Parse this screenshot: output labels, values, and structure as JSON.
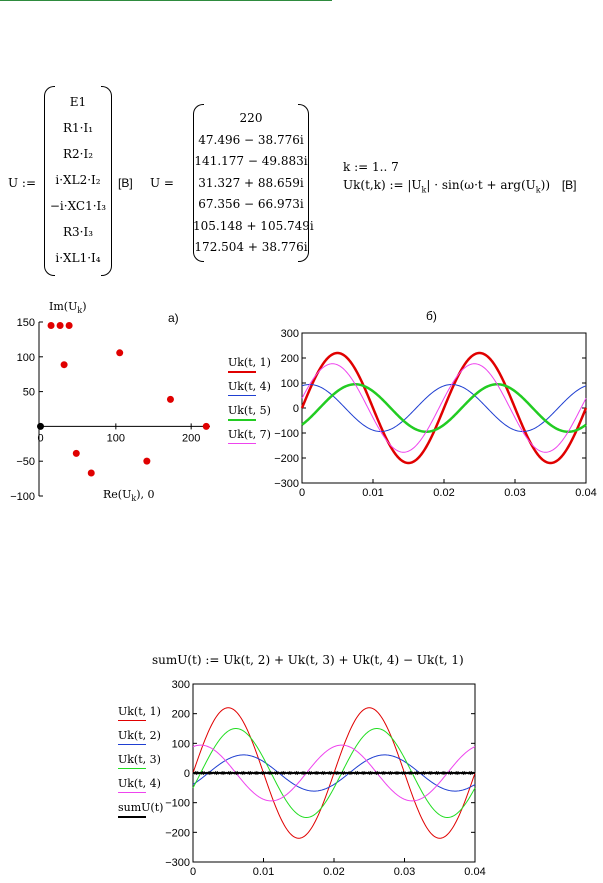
{
  "matrixU1": {
    "lhs": "U :=",
    "rows": [
      "E1",
      "R1·I₁",
      "R2·I₂",
      "i·XL2·I₂",
      "−i·XC1·I₃",
      "R3·I₃",
      "i·XL1·I₄"
    ],
    "unit": "[B]"
  },
  "matrixU2": {
    "lhs": "U =",
    "rows": [
      "220",
      "47.496 − 38.776i",
      "141.177 − 49.883i",
      "31.327 + 88.659i",
      "67.356 − 66.973i",
      "105.148 + 105.749i",
      "172.504 + 38.776i"
    ]
  },
  "defs": {
    "k_range": "k := 1.. 7",
    "uk_def": "Uk(t,k) := |U",
    "uk_sub": "k",
    "uk_tail": "| · sin(ω·t + arg(U",
    "uk_tail2": "))",
    "uk_unit": "[B]"
  },
  "chart_a": {
    "panel_label": "а)",
    "ylabel": "Im(U",
    "ylabel_sub": "k",
    "ylabel_end": ")",
    "xlabel": "Re(U",
    "xlabel_sub": "k",
    "xlabel_end": "), 0",
    "chart_data": {
      "type": "scatter",
      "ylim": [
        -100,
        150
      ],
      "xlim": [
        -2,
        225
      ],
      "yticks": [
        "150",
        "100",
        "50",
        "0",
        "−50",
        "−100"
      ],
      "xticks": [
        "0",
        "100",
        "200"
      ],
      "points": [
        {
          "x": 220,
          "y": 0
        },
        {
          "x": 47.496,
          "y": -38.776
        },
        {
          "x": 141.177,
          "y": -49.883
        },
        {
          "x": 31.327,
          "y": 88.659
        },
        {
          "x": 67.356,
          "y": -66.973
        },
        {
          "x": 105.148,
          "y": 105.749
        },
        {
          "x": 172.504,
          "y": 38.776
        },
        {
          "x": 14,
          "y": 145
        },
        {
          "x": 26,
          "y": 145
        },
        {
          "x": 38,
          "y": 145
        }
      ],
      "origin_point": {
        "x": 0,
        "y": 0
      }
    }
  },
  "chart_b": {
    "panel_label": "б)",
    "legend": [
      "Uk(t, 1)",
      "Uk(t, 4)",
      "Uk(t, 5)",
      "Uk(t, 7)"
    ],
    "chart_data": {
      "type": "line",
      "xlim": [
        0,
        0.04
      ],
      "ylim": [
        -300,
        300
      ],
      "xticks": [
        "0",
        "0.01",
        "0.02",
        "0.03",
        "0.04"
      ],
      "yticks": [
        "300",
        "200",
        "100",
        "0",
        "−100",
        "−200",
        "−300"
      ],
      "series": [
        {
          "name": "Uk(t, 1)",
          "amplitude": 220,
          "phase_deg": 0,
          "color": "#e00000",
          "width": 2.5
        },
        {
          "name": "Uk(t, 4)",
          "amplitude": 94,
          "phase_deg": 70.5,
          "color": "#1f3fd1",
          "width": 1
        },
        {
          "name": "Uk(t, 5)",
          "amplitude": 95,
          "phase_deg": -44.8,
          "color": "#22cc22",
          "width": 2.5
        },
        {
          "name": "Uk(t, 7)",
          "amplitude": 177,
          "phase_deg": 12.7,
          "color": "#ee44ee",
          "width": 1
        }
      ],
      "frequency_hz": 50
    }
  },
  "sum_def": "sumU(t) := Uk(t, 2) + Uk(t, 3) + Uk(t, 4) − Uk(t, 1)",
  "chart_c": {
    "legend": [
      "Uk(t, 1)",
      "Uk(t, 2)",
      "Uk(t, 3)",
      "Uk(t, 4)",
      "sumU(t)"
    ],
    "chart_data": {
      "type": "line",
      "xlim": [
        0,
        0.04
      ],
      "ylim": [
        -300,
        300
      ],
      "xticks": [
        "0",
        "0.01",
        "0.02",
        "0.03",
        "0.04"
      ],
      "yticks": [
        "300",
        "200",
        "100",
        "0",
        "−100",
        "−200",
        "−300"
      ],
      "series": [
        {
          "name": "Uk(t, 1)",
          "amplitude": 220,
          "phase_deg": 0,
          "color": "#e00000",
          "width": 1
        },
        {
          "name": "Uk(t, 2)",
          "amplitude": 61,
          "phase_deg": -39.2,
          "color": "#1f3fd1",
          "width": 1
        },
        {
          "name": "Uk(t, 3)",
          "amplitude": 150,
          "phase_deg": -19.5,
          "color": "#22dd22",
          "width": 1
        },
        {
          "name": "Uk(t, 4)",
          "amplitude": 94,
          "phase_deg": 70.5,
          "color": "#ee44ee",
          "width": 1
        },
        {
          "name": "sumU(t)",
          "amplitude": 0,
          "phase_deg": 0,
          "color": "#000000",
          "width": 2
        }
      ],
      "frequency_hz": 50
    }
  }
}
